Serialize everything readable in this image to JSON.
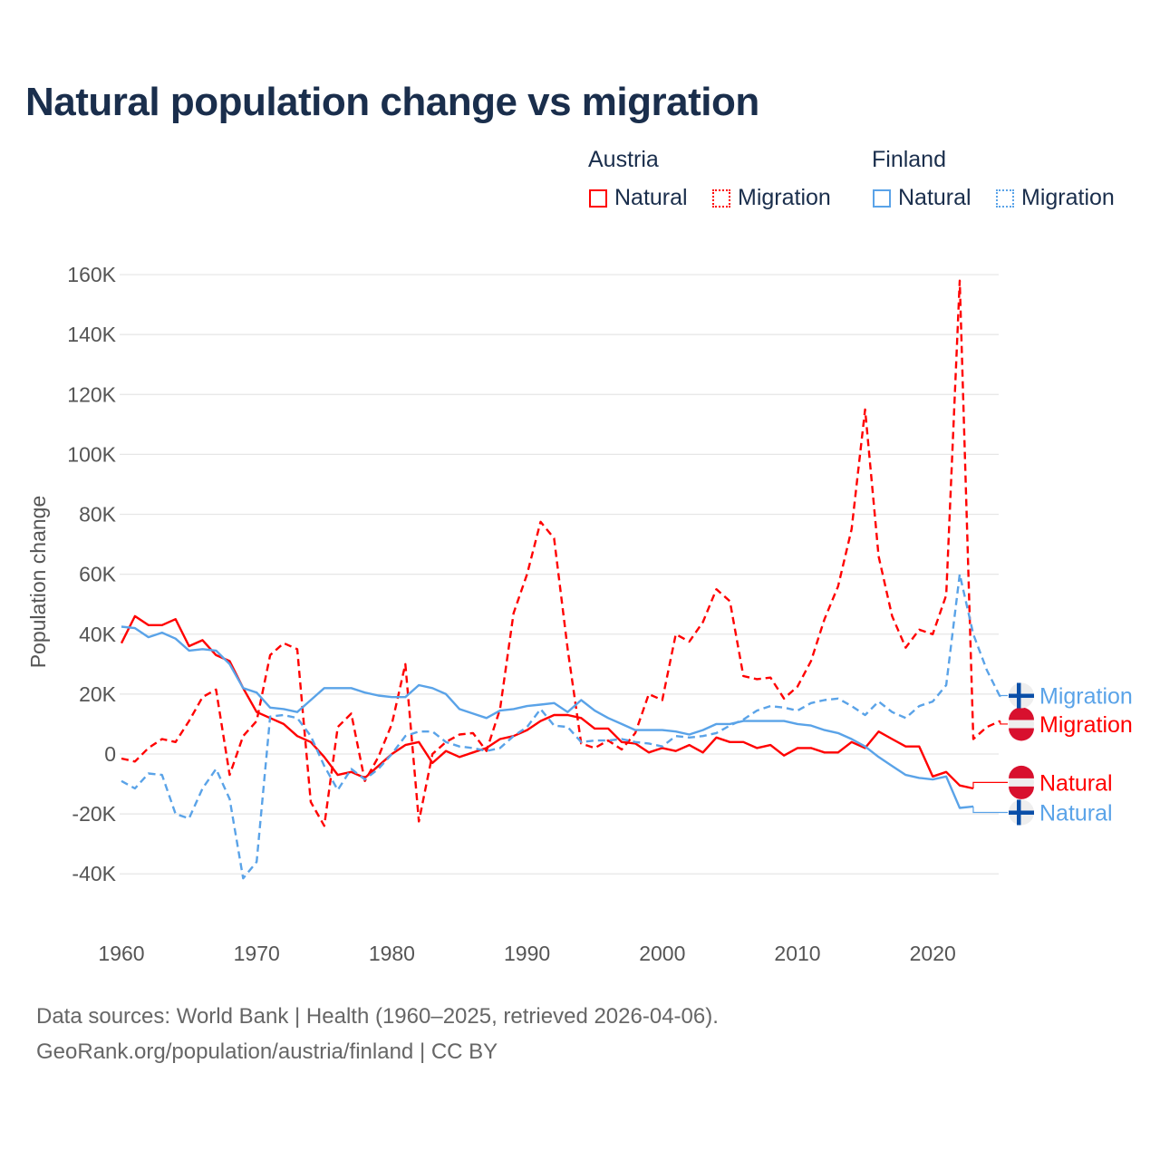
{
  "chart_data": {
    "type": "line",
    "title": "Natural population change vs migration",
    "xlabel": "",
    "ylabel": "Population change",
    "xlim": [
      1960,
      2025
    ],
    "ylim": [
      -40000,
      160000
    ],
    "grid": true,
    "legend_position": "top-right",
    "x_ticks": [
      {
        "v": 1960,
        "label": "1960"
      },
      {
        "v": 1970,
        "label": "1970"
      },
      {
        "v": 1980,
        "label": "1980"
      },
      {
        "v": 1990,
        "label": "1990"
      },
      {
        "v": 2000,
        "label": "2000"
      },
      {
        "v": 2010,
        "label": "2010"
      },
      {
        "v": 2020,
        "label": "2020"
      }
    ],
    "y_ticks": [
      {
        "v": 160,
        "label": "160K"
      },
      {
        "v": 140,
        "label": "140K"
      },
      {
        "v": 120,
        "label": "120K"
      },
      {
        "v": 100,
        "label": "100K"
      },
      {
        "v": 80,
        "label": "80K"
      },
      {
        "v": 60,
        "label": "60K"
      },
      {
        "v": 40,
        "label": "40K"
      },
      {
        "v": 20,
        "label": "20K"
      },
      {
        "v": 0,
        "label": "0"
      },
      {
        "v": -20,
        "label": "-20K"
      },
      {
        "v": -40,
        "label": "-40K"
      }
    ],
    "units_note": "values in thousands",
    "x_start": 1960,
    "legend": {
      "groups": [
        {
          "name": "Austria",
          "items": [
            "Natural",
            "Migration"
          ]
        },
        {
          "name": "Finland",
          "items": [
            "Natural",
            "Migration"
          ]
        }
      ]
    },
    "series": [
      {
        "name": "Austria Natural",
        "country": "Austria",
        "kind": "Natural",
        "color": "#ff0000",
        "dashed": false,
        "end_label": "Natural",
        "label_value": -9.5,
        "values": [
          37,
          46,
          43,
          43,
          45,
          36,
          38,
          33,
          31,
          22,
          14,
          12,
          10,
          6,
          4,
          -1,
          -7,
          -6,
          -8,
          -4,
          0,
          3,
          4,
          -3,
          1,
          -1,
          0.5,
          2,
          5,
          6,
          8,
          11,
          13,
          13,
          12,
          8.5,
          8.5,
          4,
          3.5,
          0.5,
          2,
          1,
          3,
          0.5,
          5.5,
          4,
          4,
          2,
          3,
          -0.5,
          2,
          2,
          0.5,
          0.5,
          4,
          2,
          7.5,
          5,
          2.5,
          2.5,
          -7.5,
          -6,
          -10.5,
          -11.5
        ]
      },
      {
        "name": "Austria Migration",
        "country": "Austria",
        "kind": "Migration",
        "color": "#ff0000",
        "dashed": true,
        "end_label": "Migration",
        "label_value": 10,
        "values": [
          -1.5,
          -2.5,
          2,
          5,
          4,
          11,
          19,
          21.5,
          -7,
          6,
          11,
          33,
          37,
          35,
          -16,
          -24,
          9,
          13.5,
          -9,
          -1,
          10,
          30,
          -22.5,
          0,
          4,
          6.5,
          7,
          1,
          15,
          47,
          60,
          77.5,
          72,
          35,
          3.5,
          2,
          4.5,
          1.5,
          7,
          20,
          18,
          40,
          37.5,
          44,
          55,
          51,
          26,
          25,
          25.5,
          18.5,
          22.5,
          31,
          45,
          56,
          75,
          115,
          66,
          46,
          35.5,
          41.5,
          40,
          53,
          158,
          5,
          9,
          11
        ]
      },
      {
        "name": "Finland Natural",
        "country": "Finland",
        "kind": "Natural",
        "color": "#5aa3e8",
        "dashed": false,
        "end_label": "Natural",
        "label_value": -19.5,
        "values": [
          42.5,
          42,
          39,
          40.5,
          38.5,
          34.5,
          35,
          34.5,
          30,
          22,
          20.5,
          15.5,
          15,
          14,
          18,
          22,
          22,
          22,
          20.5,
          19.5,
          19,
          19,
          23,
          22,
          20,
          15,
          13.5,
          12,
          14.5,
          15,
          16,
          16.5,
          17,
          14,
          18,
          14.5,
          12,
          10,
          8,
          8,
          8,
          7.5,
          6.5,
          8,
          10,
          10,
          11,
          11,
          11,
          11,
          10,
          9.5,
          8,
          7,
          5,
          2.5,
          -1,
          -4,
          -7,
          -8,
          -8.5,
          -7.5,
          -18,
          -17.5
        ]
      },
      {
        "name": "Finland Migration",
        "country": "Finland",
        "kind": "Migration",
        "color": "#5aa3e8",
        "dashed": true,
        "end_label": "Migration",
        "label_value": 19.5,
        "values": [
          -9,
          -11.5,
          -6.5,
          -7,
          -20,
          -21.5,
          -11.5,
          -5,
          -15,
          -41.5,
          -36,
          12.5,
          13,
          12,
          6,
          -4,
          -12,
          -5,
          -8.5,
          -5,
          0,
          6,
          7.5,
          7.5,
          4,
          2.5,
          2,
          1,
          2,
          6,
          9,
          15,
          9.5,
          9,
          4,
          4.5,
          4.5,
          5,
          4,
          3.5,
          2.5,
          6,
          5.5,
          6,
          7,
          9.5,
          11.5,
          14.5,
          16,
          15.5,
          14.5,
          17,
          18,
          18.5,
          16,
          13,
          17.5,
          14,
          12,
          16,
          17.5,
          23,
          60,
          40,
          28,
          19
        ]
      }
    ]
  },
  "footer": {
    "line1": "Data sources: World Bank | Health (1960–2025, retrieved 2026-04-06).",
    "line2": "GeoRank.org/population/austria/finland | CC BY"
  }
}
